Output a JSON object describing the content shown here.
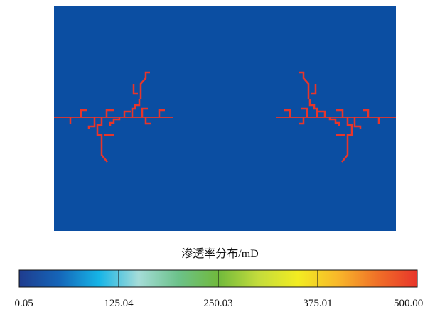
{
  "chart_data": {
    "type": "heatmap",
    "title": "",
    "background_value": 0.05,
    "fracture_value": 500.0,
    "colorbar": {
      "label": "渗透率分布/mD",
      "min": 0.05,
      "max": 500.0,
      "ticks": [
        "0.05",
        "125.04",
        "250.03",
        "375.01",
        "500.00"
      ],
      "colors": [
        "#1f3c8e",
        "#1565b8",
        "#16b4e6",
        "#a5dcd8",
        "#6cc28a",
        "#70b93c",
        "#c3dc3c",
        "#f2ec22",
        "#f8b82a",
        "#f07028",
        "#e8352a"
      ]
    },
    "fracture_color": "#e8352a",
    "matrix_color": "#0b4ea2"
  }
}
